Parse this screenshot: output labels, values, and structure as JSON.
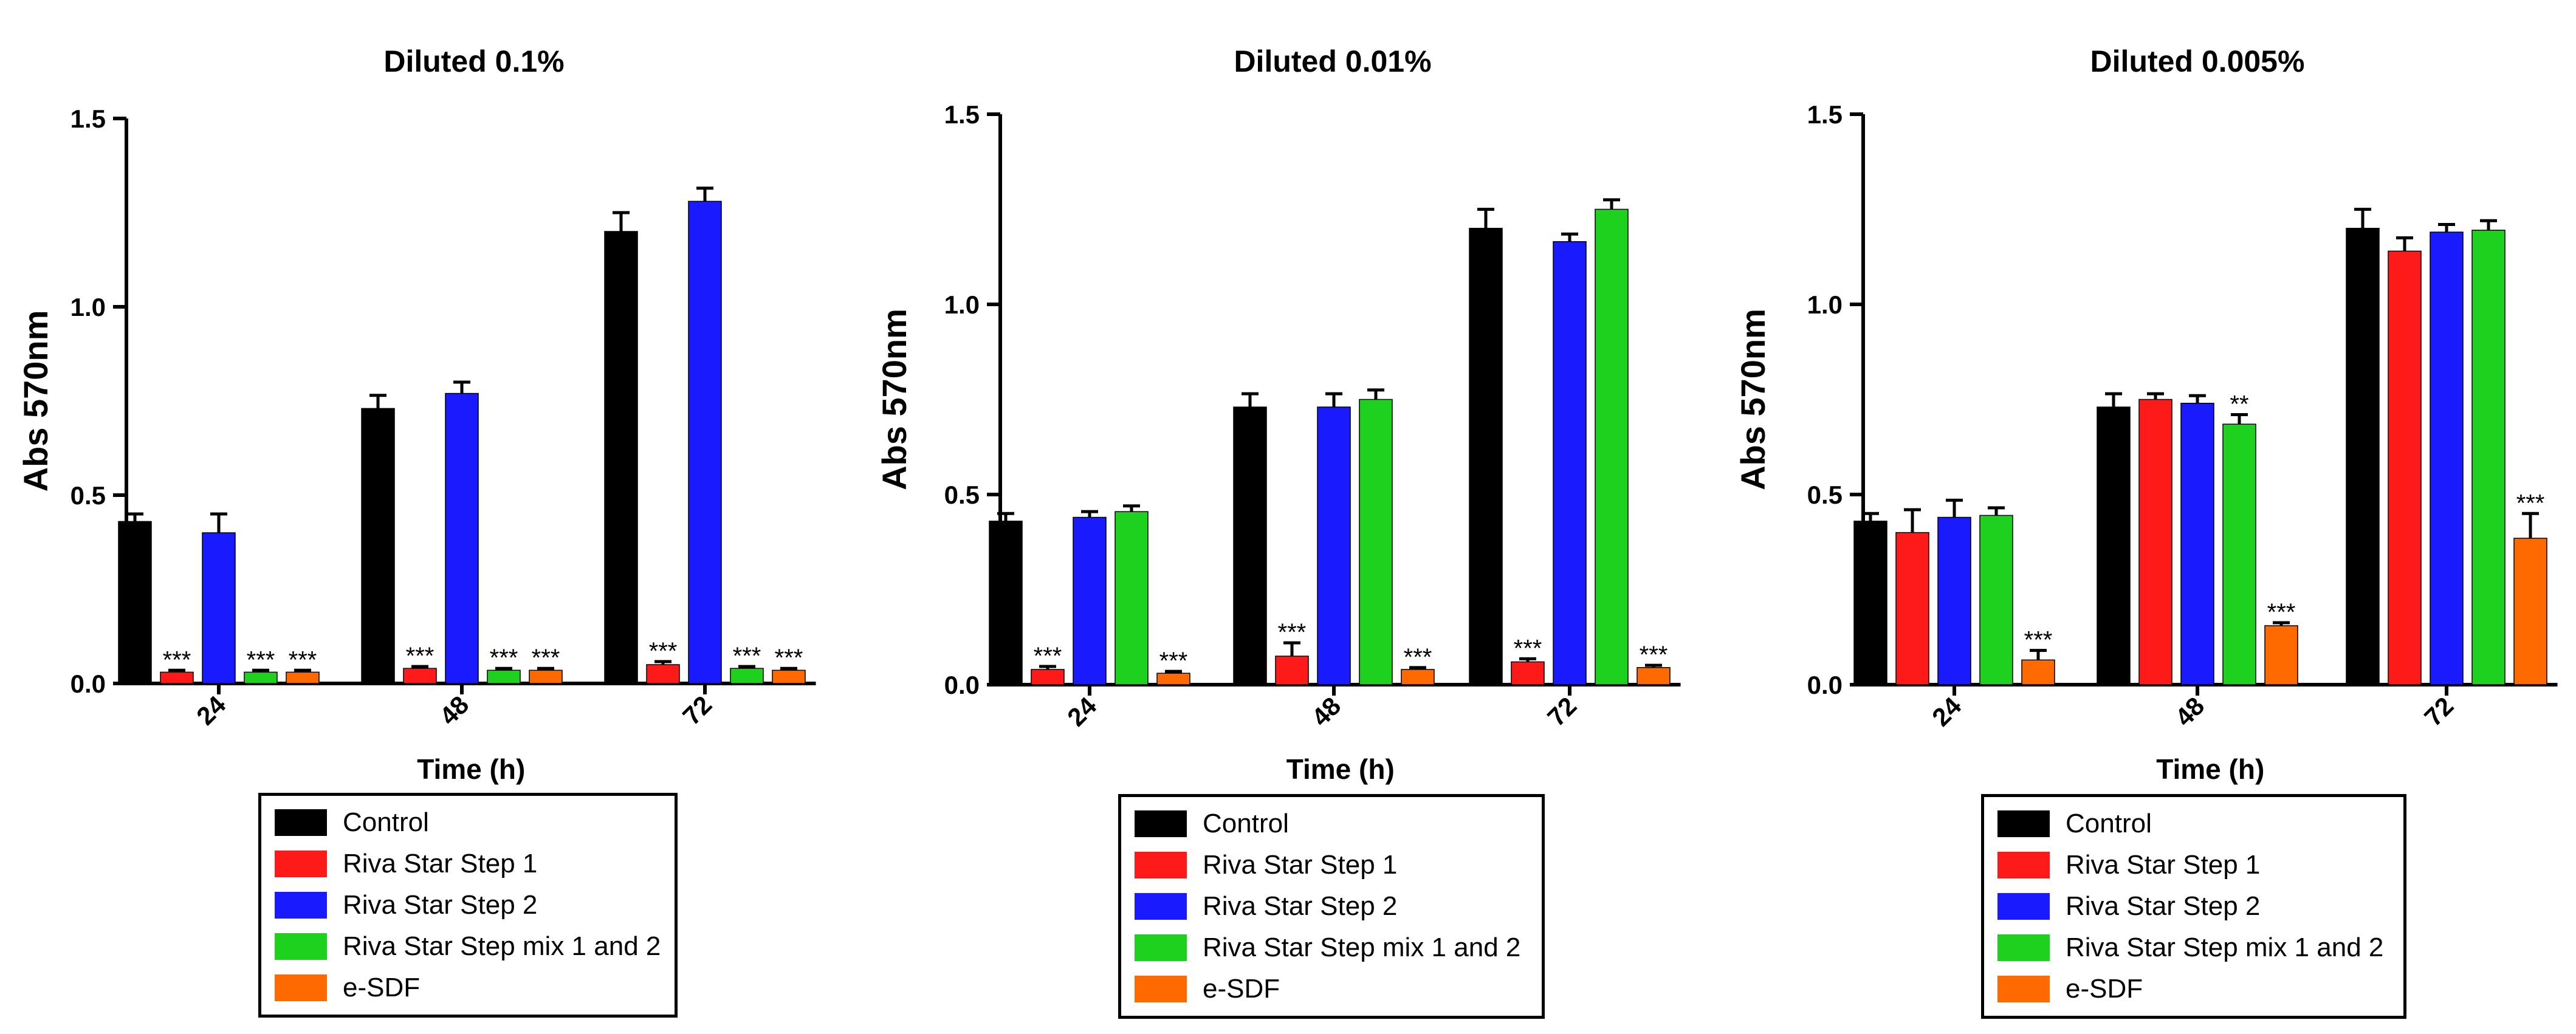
{
  "colors": {
    "control": "#000000",
    "step1": "#ff1a1a",
    "step2": "#1a1aff",
    "mix": "#1fd11f",
    "esdf": "#ff6a00"
  },
  "legend": [
    {
      "key": "control",
      "label": "Control"
    },
    {
      "key": "step1",
      "label": "Riva Star Step 1"
    },
    {
      "key": "step2",
      "label": "Riva Star Step 2"
    },
    {
      "key": "mix",
      "label": "Riva Star Step mix 1 and 2"
    },
    {
      "key": "esdf",
      "label": "e-SDF"
    }
  ],
  "chart_data": [
    {
      "type": "bar",
      "title": "Diluted 0.1%",
      "xlabel": "Time (h)",
      "ylabel": "Abs 570nm",
      "ylim": [
        0,
        1.5
      ],
      "yticks": [
        "0.0",
        "0.5",
        "1.0",
        "1.5"
      ],
      "categories": [
        "24",
        "48",
        "72"
      ],
      "series": [
        {
          "name": "Control",
          "key": "control",
          "values": [
            0.43,
            0.73,
            1.2
          ],
          "errors": [
            0.02,
            0.035,
            0.05
          ],
          "annotations": [
            "",
            "",
            ""
          ]
        },
        {
          "name": "Riva Star Step 1",
          "key": "step1",
          "values": [
            0.03,
            0.04,
            0.05
          ],
          "errors": [
            0.005,
            0.005,
            0.008
          ],
          "annotations": [
            "***",
            "***",
            "***"
          ]
        },
        {
          "name": "Riva Star Step 2",
          "key": "step2",
          "values": [
            0.4,
            0.77,
            1.28
          ],
          "errors": [
            0.05,
            0.03,
            0.035
          ],
          "annotations": [
            "",
            "",
            ""
          ]
        },
        {
          "name": "Riva Star Step mix 1 and 2",
          "key": "mix",
          "values": [
            0.03,
            0.035,
            0.04
          ],
          "errors": [
            0.005,
            0.005,
            0.005
          ],
          "annotations": [
            "***",
            "***",
            "***"
          ]
        },
        {
          "name": "e-SDF",
          "key": "esdf",
          "values": [
            0.03,
            0.035,
            0.035
          ],
          "errors": [
            0.005,
            0.005,
            0.005
          ],
          "annotations": [
            "***",
            "***",
            "***"
          ]
        }
      ]
    },
    {
      "type": "bar",
      "title": "Diluted 0.01%",
      "xlabel": "Time (h)",
      "ylabel": "Abs 570nm",
      "ylim": [
        0,
        1.5
      ],
      "yticks": [
        "0.0",
        "0.5",
        "1.0",
        "1.5"
      ],
      "categories": [
        "24",
        "48",
        "72"
      ],
      "series": [
        {
          "name": "Control",
          "key": "control",
          "values": [
            0.43,
            0.73,
            1.2
          ],
          "errors": [
            0.02,
            0.035,
            0.05
          ],
          "annotations": [
            "",
            "",
            ""
          ]
        },
        {
          "name": "Riva Star Step 1",
          "key": "step1",
          "values": [
            0.04,
            0.075,
            0.06
          ],
          "errors": [
            0.008,
            0.035,
            0.008
          ],
          "annotations": [
            "***",
            "***",
            "***"
          ]
        },
        {
          "name": "Riva Star Step 2",
          "key": "step2",
          "values": [
            0.44,
            0.73,
            1.165
          ],
          "errors": [
            0.015,
            0.035,
            0.02
          ],
          "annotations": [
            "",
            "",
            ""
          ]
        },
        {
          "name": "Riva Star Step mix 1 and 2",
          "key": "mix",
          "values": [
            0.455,
            0.75,
            1.25
          ],
          "errors": [
            0.015,
            0.025,
            0.025
          ],
          "annotations": [
            "",
            "",
            ""
          ]
        },
        {
          "name": "e-SDF",
          "key": "esdf",
          "values": [
            0.03,
            0.04,
            0.045
          ],
          "errors": [
            0.005,
            0.005,
            0.006
          ],
          "annotations": [
            "***",
            "***",
            "***"
          ]
        }
      ]
    },
    {
      "type": "bar",
      "title": "Diluted 0.005%",
      "xlabel": "Time (h)",
      "ylabel": "Abs 570nm",
      "ylim": [
        0,
        1.5
      ],
      "yticks": [
        "0.0",
        "0.5",
        "1.0",
        "1.5"
      ],
      "categories": [
        "24",
        "48",
        "72"
      ],
      "series": [
        {
          "name": "Control",
          "key": "control",
          "values": [
            0.43,
            0.73,
            1.2
          ],
          "errors": [
            0.02,
            0.035,
            0.05
          ],
          "annotations": [
            "",
            "",
            ""
          ]
        },
        {
          "name": "Riva Star Step 1",
          "key": "step1",
          "values": [
            0.4,
            0.75,
            1.14
          ],
          "errors": [
            0.06,
            0.015,
            0.035
          ],
          "annotations": [
            "",
            "",
            ""
          ]
        },
        {
          "name": "Riva Star Step 2",
          "key": "step2",
          "values": [
            0.44,
            0.74,
            1.19
          ],
          "errors": [
            0.045,
            0.02,
            0.02
          ],
          "annotations": [
            "",
            "",
            ""
          ]
        },
        {
          "name": "Riva Star Step mix 1 and 2",
          "key": "mix",
          "values": [
            0.445,
            0.685,
            1.195
          ],
          "errors": [
            0.02,
            0.025,
            0.025
          ],
          "annotations": [
            "",
            "**",
            ""
          ]
        },
        {
          "name": "e-SDF",
          "key": "esdf",
          "values": [
            0.065,
            0.155,
            0.385
          ],
          "errors": [
            0.025,
            0.008,
            0.065
          ],
          "annotations": [
            "***",
            "***",
            "***"
          ]
        }
      ]
    }
  ]
}
